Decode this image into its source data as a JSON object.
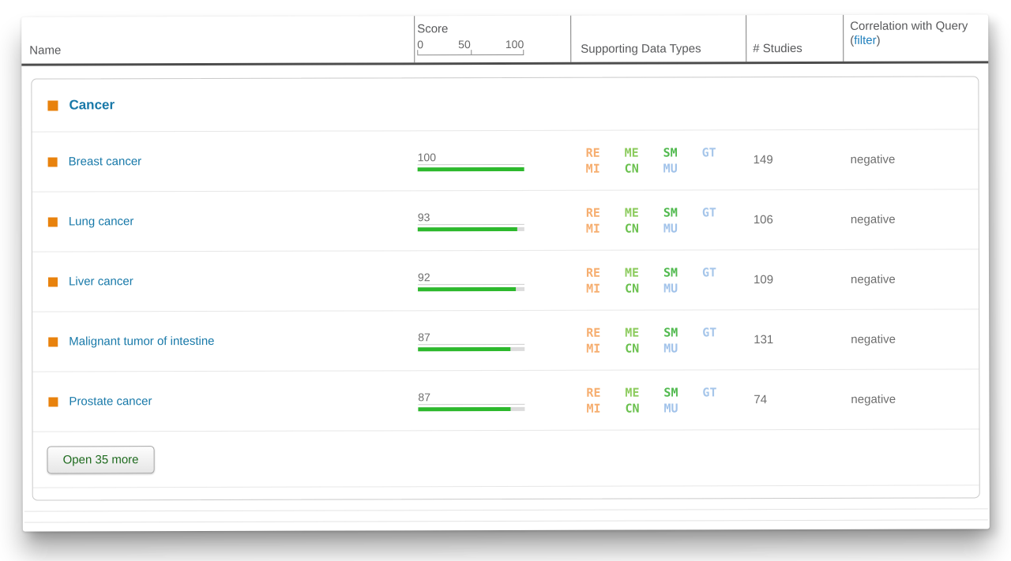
{
  "header": {
    "name_label": "Name",
    "score": {
      "label": "Score",
      "ticks": [
        "0",
        "50",
        "100"
      ]
    },
    "types_label": "Supporting Data Types",
    "studies_label": "# Studies",
    "correlation": {
      "title": "Correlation with Query",
      "filter_prefix": "(",
      "filter_label": "filter",
      "filter_suffix": ")"
    }
  },
  "group": {
    "label": "Cancer"
  },
  "rows": [
    {
      "name": "Breast cancer",
      "score": 100,
      "studies": "149",
      "correlation": "negative",
      "data_types": [
        [
          "RE",
          "ME",
          "SM",
          "GT"
        ],
        [
          "MI",
          "CN",
          "MU"
        ]
      ]
    },
    {
      "name": "Lung cancer",
      "score": 93,
      "studies": "106",
      "correlation": "negative",
      "data_types": [
        [
          "RE",
          "ME",
          "SM",
          "GT"
        ],
        [
          "MI",
          "CN",
          "MU"
        ]
      ]
    },
    {
      "name": "Liver cancer",
      "score": 92,
      "studies": "109",
      "correlation": "negative",
      "data_types": [
        [
          "RE",
          "ME",
          "SM",
          "GT"
        ],
        [
          "MI",
          "CN",
          "MU"
        ]
      ]
    },
    {
      "name": "Malignant tumor of intestine",
      "score": 87,
      "studies": "131",
      "correlation": "negative",
      "data_types": [
        [
          "RE",
          "ME",
          "SM",
          "GT"
        ],
        [
          "MI",
          "CN",
          "MU"
        ]
      ]
    },
    {
      "name": "Prostate cancer",
      "score": 87,
      "studies": "74",
      "correlation": "negative",
      "data_types": [
        [
          "RE",
          "ME",
          "SM",
          "GT"
        ],
        [
          "MI",
          "CN",
          "MU"
        ]
      ]
    }
  ],
  "data_type_colors": {
    "RE": "#F6AE70",
    "MI": "#F6AE70",
    "ME": "#8CCB5E",
    "CN": "#6BC14F",
    "SM": "#51B94F",
    "GT": "#A6C6EA",
    "MU": "#A2C3EA"
  },
  "footer": {
    "open_more_label": "Open 35 more"
  },
  "colors": {
    "bar_green": "#2DB92D",
    "bar_track": "#DCDCDC",
    "link_blue": "#1879A9",
    "marker_orange": "#E8820D",
    "filter_link": "#1F7FBC"
  }
}
